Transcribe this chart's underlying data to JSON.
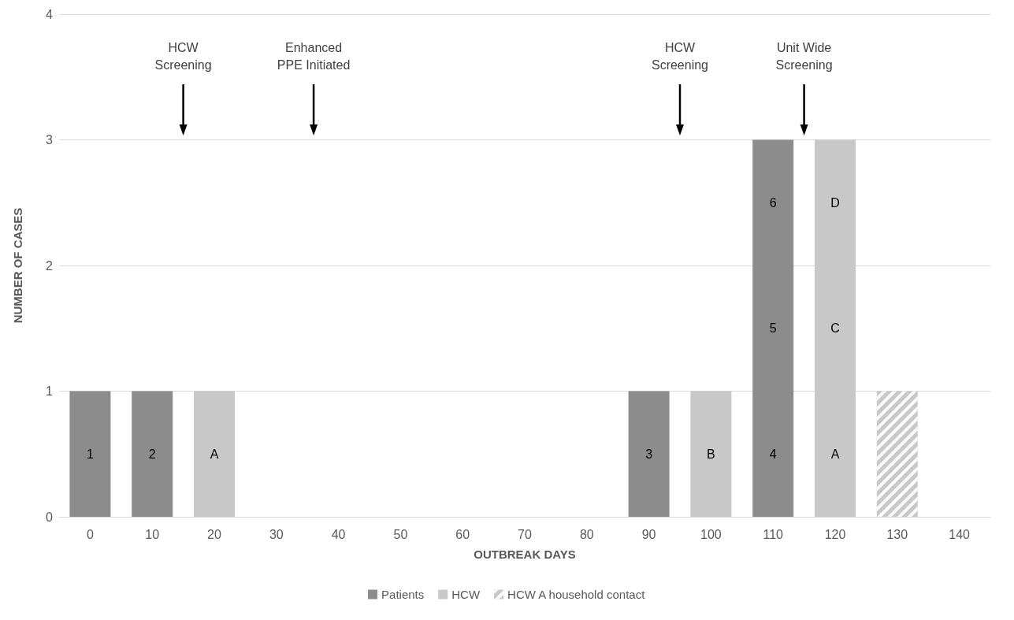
{
  "chart_data": {
    "type": "bar",
    "xlabel": "OUTBREAK DAYS",
    "ylabel": "NUMBER OF CASES",
    "xlim": [
      -5,
      145
    ],
    "xticks": [
      0,
      10,
      20,
      30,
      40,
      50,
      60,
      70,
      80,
      90,
      100,
      110,
      120,
      130,
      140
    ],
    "ylim": [
      0,
      4
    ],
    "yticks": [
      0,
      1,
      2,
      3,
      4
    ],
    "grid": "y",
    "legend": "bottom",
    "series": [
      {
        "name": "Patients",
        "color": "#8c8c8c",
        "x": [
          0,
          10,
          90,
          110
        ],
        "values": [
          1,
          1,
          1,
          3
        ]
      },
      {
        "name": "HCW",
        "color": "#c8c8c8",
        "x": [
          20,
          100,
          120
        ],
        "values": [
          1,
          1,
          3
        ]
      },
      {
        "name": "HCW A household contact",
        "color": "#c8c8c8",
        "x": [
          130
        ],
        "values": [
          1
        ]
      }
    ],
    "annotations": [
      "1",
      "2",
      "3",
      "4",
      "5",
      "6",
      "A",
      "B",
      "A",
      "C",
      "D"
    ],
    "ref_lines": [
      {
        "axis": "x",
        "value": 15,
        "label": "HCW\nScreening"
      },
      {
        "axis": "x",
        "value": 36,
        "label": "Enhanced\nPPE Initiated"
      },
      {
        "axis": "x",
        "value": 95,
        "label": "HCW\nScreening"
      },
      {
        "axis": "x",
        "value": 115,
        "label": "Unit Wide\nScreening"
      }
    ]
  }
}
